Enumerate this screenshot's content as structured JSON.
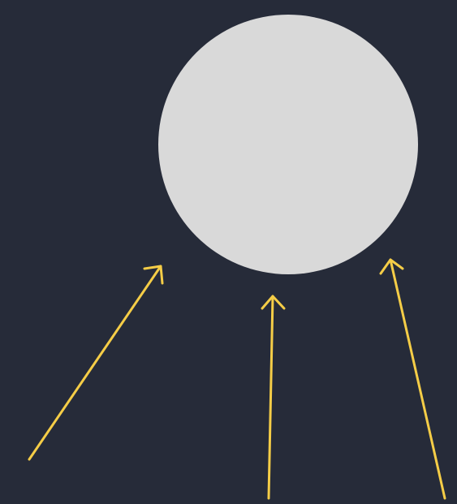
{
  "scene": {
    "background_color": "#262b39",
    "circle": {
      "shape": "circle",
      "fill_color": "#d9d9d9"
    },
    "arrows": [
      {
        "name": "arrow-left",
        "color": "#f5cd47"
      },
      {
        "name": "arrow-center",
        "color": "#f5cd47"
      },
      {
        "name": "arrow-right",
        "color": "#f5cd47"
      }
    ]
  }
}
